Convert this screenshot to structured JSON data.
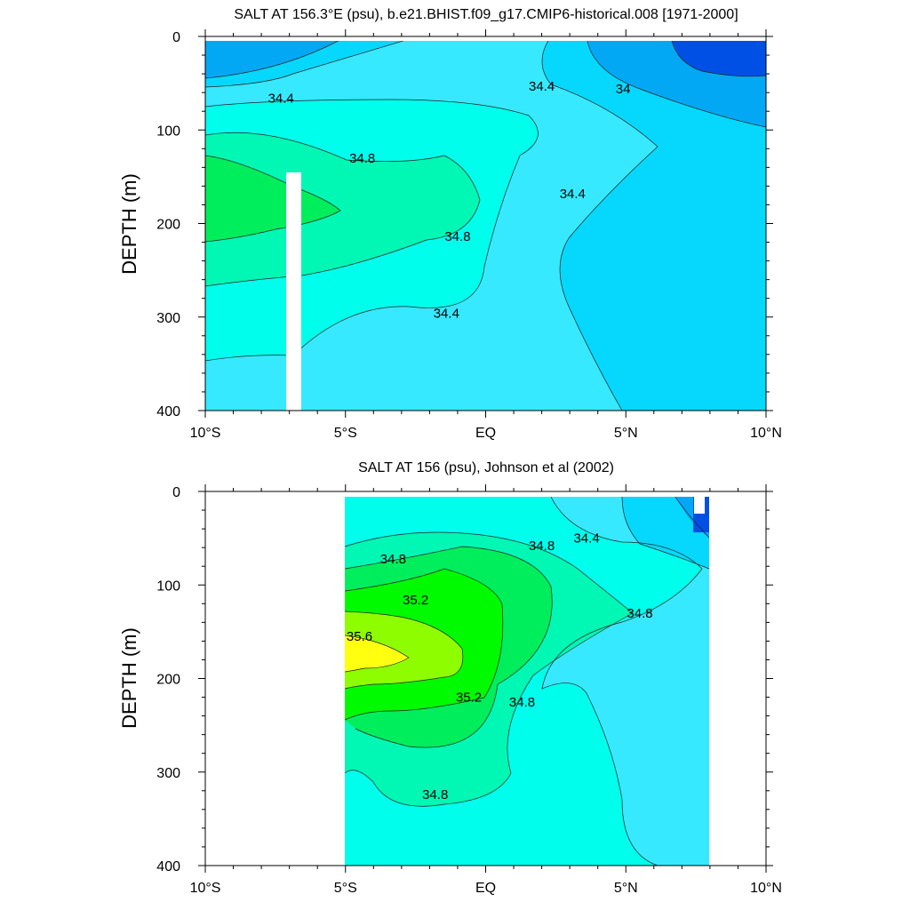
{
  "chart_data": [
    {
      "type": "heatmap",
      "title": "SALT AT 156.3°E (psu), b.e21.BHIST.f09_g17.CMIP6-historical.008 [1971-2000]",
      "ylabel": "DEPTH (m)",
      "xlabel": "",
      "xlim": [
        -10,
        10
      ],
      "ylim": [
        0,
        400
      ],
      "y_inverted": true,
      "xticks": [
        {
          "value": -10,
          "label": "10°S"
        },
        {
          "value": -5,
          "label": "5°S"
        },
        {
          "value": 0,
          "label": "EQ"
        },
        {
          "value": 5,
          "label": "5°N"
        },
        {
          "value": 10,
          "label": "10°N"
        }
      ],
      "yticks": [
        0,
        100,
        200,
        300,
        400
      ],
      "colors": {
        "lt_34_0": "#0050e6",
        "34_0_34_2": "#03a8f4",
        "34_2_34_4": "#06d8fd",
        "34_4_34_6": "#36e9ff",
        "34_6_34_8": "#00feec",
        "34_8_35_0": "#00f7b4",
        "35_0_35_2": "#00ee5b"
      },
      "contour_labels": [
        {
          "text": "34.4",
          "x": -7.3,
          "y": 66
        },
        {
          "text": "34.8",
          "x": -4.4,
          "y": 130
        },
        {
          "text": "34.8",
          "x": -1.0,
          "y": 214
        },
        {
          "text": "34.4",
          "x": -1.4,
          "y": 296
        },
        {
          "text": "34.4",
          "x": 2.0,
          "y": 53
        },
        {
          "text": "34",
          "x": 4.9,
          "y": 56
        },
        {
          "text": "34.4",
          "x": 3.1,
          "y": 168
        }
      ]
    },
    {
      "type": "heatmap",
      "title": "SALT AT 156 (psu), Johnson et al (2002)",
      "ylabel": "DEPTH (m)",
      "xlabel": "",
      "xlim": [
        -10,
        10
      ],
      "ylim": [
        0,
        400
      ],
      "y_inverted": true,
      "data_extent_x": [
        -5,
        8
      ],
      "xticks": [
        {
          "value": -10,
          "label": "10°S"
        },
        {
          "value": -5,
          "label": "5°S"
        },
        {
          "value": 0,
          "label": "EQ"
        },
        {
          "value": 5,
          "label": "5°N"
        },
        {
          "value": 10,
          "label": "10°N"
        }
      ],
      "yticks": [
        0,
        100,
        200,
        300,
        400
      ],
      "colors": {
        "34_0_34_2": "#03a8f4",
        "34_2_34_4": "#06d8fd",
        "34_4_34_6": "#36e9ff",
        "34_6_34_8": "#00feec",
        "34_8_35_0": "#00f7b4",
        "35_0_35_2": "#00ee5b",
        "35_2_35_4": "#00fa00",
        "35_4_35_6": "#8efd00",
        "gt_35_6": "#ffff10"
      },
      "contour_labels": [
        {
          "text": "34.8",
          "x": -3.3,
          "y": 72
        },
        {
          "text": "34.8",
          "x": 2.0,
          "y": 58
        },
        {
          "text": "34.4",
          "x": 3.6,
          "y": 50
        },
        {
          "text": "35.2",
          "x": -2.5,
          "y": 116
        },
        {
          "text": "35.6",
          "x": -4.5,
          "y": 155
        },
        {
          "text": "35.2",
          "x": -0.6,
          "y": 220
        },
        {
          "text": "34.8",
          "x": 1.3,
          "y": 225
        },
        {
          "text": "34.8",
          "x": 5.5,
          "y": 130
        },
        {
          "text": "34.8",
          "x": -1.8,
          "y": 324
        }
      ]
    }
  ]
}
